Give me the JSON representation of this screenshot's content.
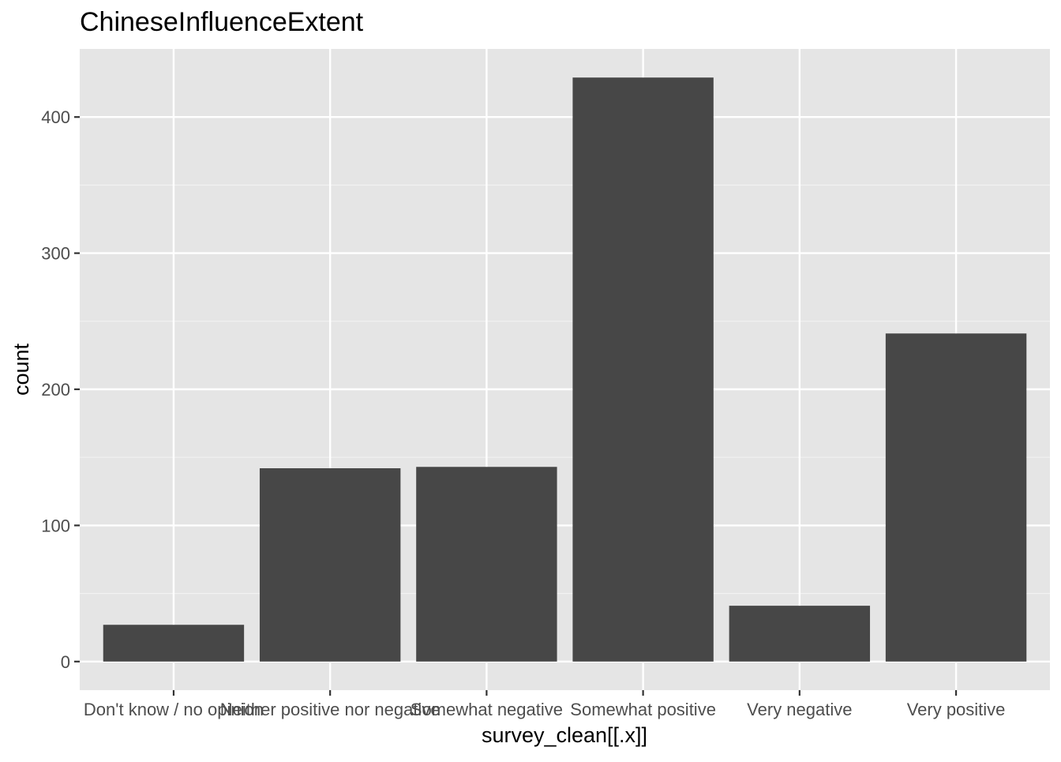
{
  "chart_data": {
    "type": "bar",
    "title": "ChineseInfluenceExtent",
    "xlabel": "survey_clean[[.x]]",
    "ylabel": "count",
    "categories": [
      "Don't know / no opinion",
      "Neither positive nor negative",
      "Somewhat negative",
      "Somewhat positive",
      "Very negative",
      "Very positive"
    ],
    "values": [
      27,
      142,
      143,
      429,
      41,
      241
    ],
    "ylim": [
      -21,
      450
    ],
    "yticks": [
      0,
      100,
      200,
      300,
      400
    ],
    "ytick_labels": [
      "0",
      "100",
      "200",
      "300",
      "400"
    ],
    "grid": true,
    "legend": "none",
    "colors": {
      "panel_background": "#e5e5e5",
      "grid_major": "#ffffff",
      "grid_minor": "#f2f2f2",
      "bar_fill": "#474747",
      "tick_mark": "#333333",
      "tick_label": "#4d4d4d",
      "text": "#000000"
    }
  }
}
